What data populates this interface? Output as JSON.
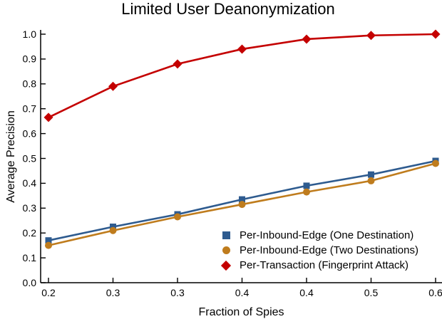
{
  "chart_data": {
    "type": "line",
    "title": "Limited User Deanonymization",
    "xlabel": "Fraction of Spies",
    "ylabel": "Average Precision",
    "x_tick_labels": [
      "0.2",
      "0.3",
      "0.3",
      "0.4",
      "0.4",
      "0.5",
      "0.6"
    ],
    "y_tick_labels": [
      "0.0",
      "0.1",
      "0.2",
      "0.3",
      "0.4",
      "0.5",
      "0.6",
      "0.7",
      "0.8",
      "0.9",
      "1.0"
    ],
    "ylim": [
      0.0,
      1.0
    ],
    "grid": false,
    "legend_position": "lower-right-inside",
    "axis_color": "#000000",
    "text_color": "#000000",
    "series": [
      {
        "name": "Per-Inbound-Edge (One Destination)",
        "marker": "square",
        "color": "#2e5b8f",
        "values": [
          0.17,
          0.225,
          0.275,
          0.335,
          0.39,
          0.435,
          0.49
        ]
      },
      {
        "name": "Per-Inbound-Edge (Two Destinations)",
        "marker": "circle",
        "color": "#bf7c1d",
        "values": [
          0.15,
          0.21,
          0.265,
          0.315,
          0.365,
          0.41,
          0.48
        ]
      },
      {
        "name": "Per-Transaction (Fingerprint Attack)",
        "marker": "diamond",
        "color": "#c40000",
        "values": [
          0.665,
          0.79,
          0.88,
          0.94,
          0.98,
          0.995,
          1.0
        ]
      }
    ]
  }
}
